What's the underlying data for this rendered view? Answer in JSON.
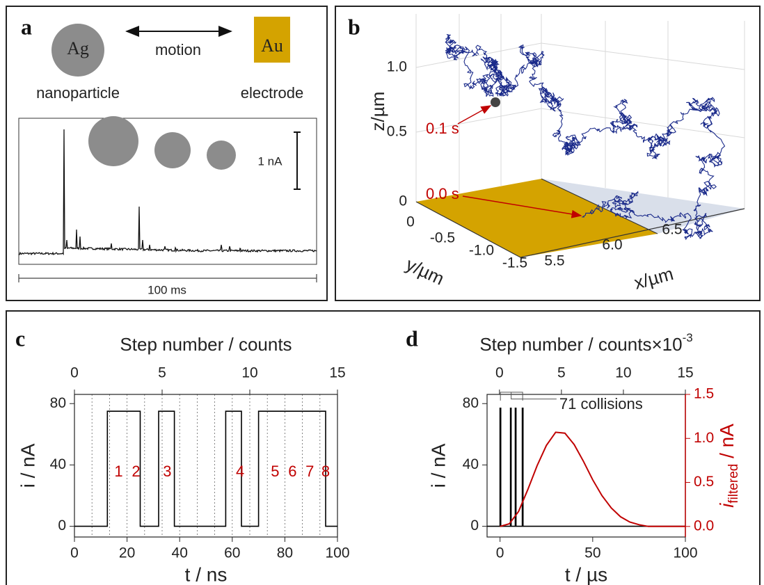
{
  "panel_a": {
    "letter": "a",
    "left_particle": "Ag",
    "arrow_label": "motion",
    "right_electrode": "Au",
    "left_caption": "nanoparticle",
    "right_caption": "electrode",
    "scale_current": "1 nA",
    "scale_time": "100 ms"
  },
  "panel_b": {
    "letter": "b",
    "z_ticks": [
      "1.0",
      "0.5",
      "0"
    ],
    "z_label": "z/µm",
    "y_ticks": [
      "0",
      "-0.5",
      "-1.0",
      "-1.5"
    ],
    "y_label": "y/µm",
    "x_ticks": [
      "5.5",
      "6.0",
      "6.5"
    ],
    "x_label": "x/µm",
    "time_labels": [
      "0.1 s",
      "0.0 s"
    ]
  },
  "chart_data": [
    {
      "type": "line",
      "letter": "c",
      "x2_label": "Step number / counts",
      "x_label": "t / ns",
      "y_label": "i / nA",
      "xlim": [
        0,
        100
      ],
      "xticks": [
        0,
        20,
        40,
        60,
        80,
        100
      ],
      "ylim": [
        -7,
        86
      ],
      "yticks": [
        0,
        40,
        80
      ],
      "x2lim": [
        0,
        15
      ],
      "x2ticks": [
        0,
        5,
        10,
        15
      ],
      "x2_gridlines": [
        1,
        2,
        3,
        4,
        5,
        6,
        7,
        8,
        9,
        10,
        11,
        12,
        13,
        14
      ],
      "series": [
        {
          "color": "#000000",
          "x": [
            0,
            12.5,
            12.5,
            25,
            25,
            32,
            32,
            38,
            38,
            57.5,
            57.5,
            63.5,
            63.5,
            70,
            70,
            95.5,
            95.5,
            100
          ],
          "values": [
            0,
            0,
            75,
            75,
            0,
            0,
            75,
            75,
            0,
            0,
            75,
            75,
            0,
            0,
            75,
            75,
            0,
            0
          ]
        }
      ],
      "annotation_color": "#c00000",
      "annotations": [
        {
          "text": "1",
          "x": 16.8,
          "y": 35
        },
        {
          "text": "2",
          "x": 23.4,
          "y": 35
        },
        {
          "text": "3",
          "x": 35.3,
          "y": 35
        },
        {
          "text": "4",
          "x": 63,
          "y": 35
        },
        {
          "text": "5",
          "x": 76.3,
          "y": 35
        },
        {
          "text": "6",
          "x": 82.9,
          "y": 35
        },
        {
          "text": "7",
          "x": 89.5,
          "y": 35
        },
        {
          "text": "8",
          "x": 95.5,
          "y": 35
        }
      ]
    },
    {
      "type": "line",
      "letter": "d",
      "x2_label": "Step number / counts×10",
      "x2_label_superscript": "-3",
      "x_label": "t / µs",
      "y_label": "i / nA",
      "y2_label": {
        "symbol": "i",
        "subscript": "filtered",
        "unit": " / nA"
      },
      "y2_color": "#c00000",
      "xlim": [
        -7,
        100
      ],
      "xticks": [
        0,
        50,
        100
      ],
      "ylim": [
        -7,
        86
      ],
      "yticks": [
        0,
        40,
        80
      ],
      "y2lim": [
        -0.12,
        1.5
      ],
      "y2ticks": [
        {
          "value": 0,
          "label": "0.0"
        },
        {
          "value": 0.5,
          "label": "0.5"
        },
        {
          "value": 1,
          "label": "1.0"
        },
        {
          "value": 1.5,
          "label": "1.5"
        }
      ],
      "x2lim": [
        -1,
        15
      ],
      "x2ticks": [
        0,
        5,
        10,
        15
      ],
      "series": [
        {
          "color": "#000000",
          "x": [
            -7,
            0,
            0,
            0.4,
            0.4,
            5.6,
            5.6,
            6,
            6,
            8.2,
            8.2,
            8.6,
            8.6,
            12,
            12,
            12.4,
            12.4,
            100
          ],
          "values": [
            0,
            0,
            77,
            77,
            0,
            0,
            77,
            77,
            0,
            0,
            77,
            77,
            0,
            0,
            77,
            77,
            0,
            0
          ]
        },
        {
          "color": "#c00000",
          "axis": "y2",
          "x": [
            0,
            5,
            10,
            15,
            20,
            25,
            30,
            35,
            40,
            45,
            50,
            55,
            60,
            65,
            70,
            75,
            80,
            90,
            100
          ],
          "values": [
            0,
            0.03,
            0.17,
            0.42,
            0.69,
            0.92,
            1.07,
            1.06,
            0.93,
            0.74,
            0.53,
            0.35,
            0.21,
            0.11,
            0.05,
            0.02,
            0,
            0,
            0
          ]
        }
      ],
      "annotations": [
        {
          "text": "71 collisions",
          "x": 32,
          "y": 79
        }
      ]
    }
  ]
}
